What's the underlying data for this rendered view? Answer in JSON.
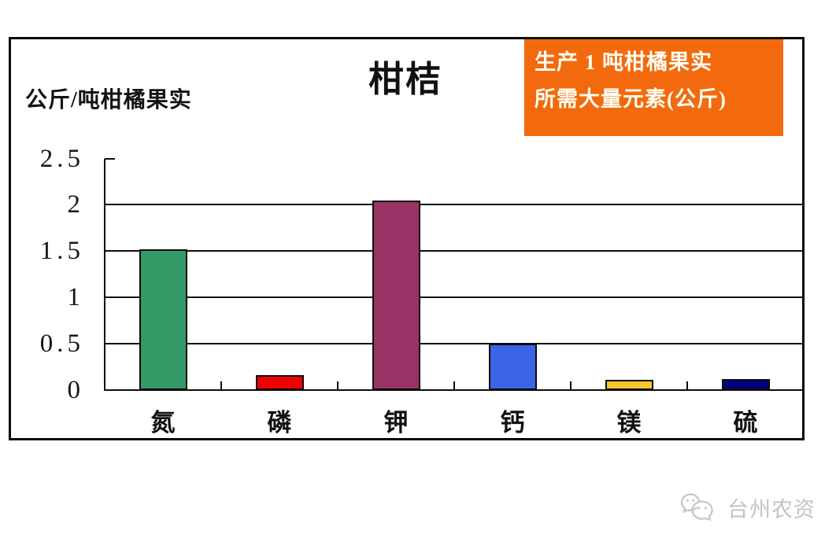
{
  "chart_data": {
    "type": "bar",
    "title": "柑桔",
    "ylabel": "公斤/吨柑橘果实",
    "xlabel": "",
    "categories": [
      "氮",
      "磷",
      "钾",
      "钙",
      "镁",
      "硫"
    ],
    "category_keys": [
      "nitrogen",
      "phosphorus",
      "potassium",
      "calcium",
      "magnesium",
      "sulfur"
    ],
    "values": [
      1.52,
      0.16,
      2.05,
      0.5,
      0.11,
      0.12
    ],
    "bar_colors": [
      "#339966",
      "#ee0000",
      "#993366",
      "#3c64e6",
      "#fbc72e",
      "#000080"
    ],
    "ylim": [
      0,
      2.5
    ],
    "yticks": [
      0,
      0.5,
      1,
      1.5,
      2,
      2.5
    ],
    "ytick_labels": [
      "0",
      "0.5",
      "1",
      "1.5",
      "2",
      "2.5"
    ],
    "grid": true,
    "legend_position": "top-right"
  },
  "legend_box": {
    "line1": "生产 1 吨柑橘果实",
    "line2": "所需大量元素(公斤)",
    "background_color": "#f26a0d",
    "text_color": "#fffdf2"
  },
  "watermark": {
    "text": "台州农资",
    "icon": "wechat-icon",
    "color": "#c3c3c3"
  }
}
